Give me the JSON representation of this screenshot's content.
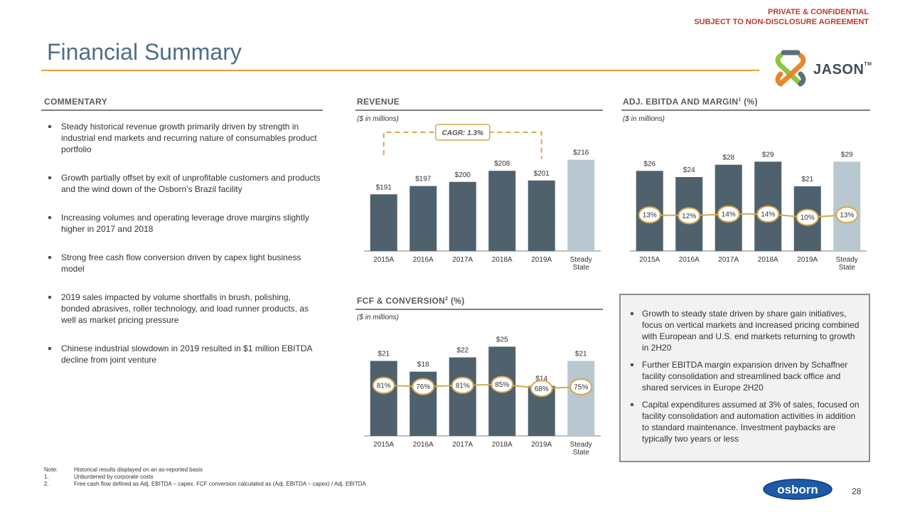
{
  "confidential": {
    "line1": "PRIVATE & CONFIDENTIAL",
    "line2": "SUBJECT TO NON-DISCLOSURE AGREEMENT"
  },
  "title": "Financial Summary",
  "logo": {
    "name": "JASON",
    "tm": "TM",
    "icon": "jason-knot-icon",
    "colors": [
      "#e8862e",
      "#8cc63f",
      "#5b6e7c"
    ]
  },
  "commentary": {
    "header": "COMMENTARY",
    "bullets": [
      "Steady historical revenue growth primarily driven by strength in industrial end markets and recurring nature of consumables product portfolio",
      "Growth partially offset by exit of unprofitable customers and products and the wind down of the Osborn’s Brazil facility",
      "Increasing volumes and operating leverage drove margins slightly higher in 2017 and 2018",
      "Strong free cash flow conversion driven by capex light business model",
      "2019 sales impacted by volume shortfalls in brush, polishing, bonded abrasives, roller technology, and load runner products, as well as market pricing pressure",
      "Chinese industrial slowdown in 2019 resulted in $1 million EBITDA decline from joint venture"
    ]
  },
  "revenue": {
    "header": "REVENUE",
    "units": "($ in millions)",
    "cagr": "CAGR: 1.3%"
  },
  "ebitda": {
    "header": "ADJ. EBITDA AND MARGIN",
    "sup": "1",
    "suffix": " (%)",
    "units": "($ in millions)"
  },
  "fcf": {
    "header": "FCF & CONVERSION",
    "sup": "2",
    "suffix": " (%)",
    "units": "($ in millions)"
  },
  "callout": {
    "bullets": [
      "Growth to steady state driven by share gain initiatives, focus on vertical markets and increased pricing combined with European and U.S. end markets returning to growth in 2H20",
      "Further EBITDA margin expansion driven by Schaffner facility consolidation and streamlined back office and shared services in Europe 2H20",
      "Capital expenditures assumed at 3% of sales, focused on facility consolidation and automation activities in addition to standard maintenance. Investment paybacks are typically two years or less"
    ]
  },
  "notes": [
    {
      "k": "Note:",
      "v": "Historical results displayed on an as-reported basis"
    },
    {
      "k": "1.",
      "v": "Unburdened by corporate costs"
    },
    {
      "k": "2.",
      "v": "Free cash flow defined as Adj. EBITDA – capex. FCF conversion calculated as (Adj. EBITDA – capex) / Adj. EBITDA"
    }
  ],
  "footer": {
    "brand": "osborn",
    "page": "28"
  },
  "colors": {
    "bar": "#4f616d",
    "bar_steady": "#b8c7d0",
    "accent": "#d4a94e",
    "title": "#4e6f86",
    "confidential": "#c0392b"
  },
  "chart_data": [
    {
      "type": "bar",
      "title": "REVENUE",
      "categories": [
        "2015A",
        "2016A",
        "2017A",
        "2018A",
        "2019A",
        "Steady State"
      ],
      "values": [
        191,
        197,
        200,
        208,
        201,
        216
      ],
      "labels": [
        "$191",
        "$197",
        "$200",
        "$208",
        "$201",
        "$216"
      ],
      "ylabel": "$ in millions",
      "ylim": [
        150,
        222
      ],
      "annotation": "CAGR: 1.3%"
    },
    {
      "type": "bar",
      "title": "ADJ. EBITDA AND MARGIN",
      "categories": [
        "2015A",
        "2016A",
        "2017A",
        "2018A",
        "2019A",
        "Steady State"
      ],
      "values": [
        26,
        24,
        28,
        29,
        21,
        29
      ],
      "labels": [
        "$26",
        "$24",
        "$28",
        "$29",
        "$21",
        "$29"
      ],
      "line_series": {
        "name": "Margin (%)",
        "values": [
          13,
          12,
          14,
          14,
          10,
          13
        ],
        "labels": [
          "13%",
          "12%",
          "14%",
          "14%",
          "10%",
          "13%"
        ]
      },
      "ylim": [
        0,
        30
      ],
      "line_ylim": [
        -30,
        80
      ]
    },
    {
      "type": "bar",
      "title": "FCF & CONVERSION",
      "categories": [
        "2015A",
        "2016A",
        "2017A",
        "2018A",
        "2019A",
        "Steady State"
      ],
      "values": [
        21,
        18,
        22,
        25,
        14,
        21
      ],
      "labels": [
        "$21",
        "$18",
        "$22",
        "$25",
        "$14",
        "$21"
      ],
      "line_series": {
        "name": "Conversion (%)",
        "values": [
          81,
          76,
          81,
          85,
          68,
          75
        ],
        "labels": [
          "81%",
          "76%",
          "81%",
          "85%",
          "68%",
          "75%"
        ]
      },
      "ylim": [
        0,
        25.5
      ],
      "line_ylim": [
        -130,
        250
      ]
    }
  ]
}
